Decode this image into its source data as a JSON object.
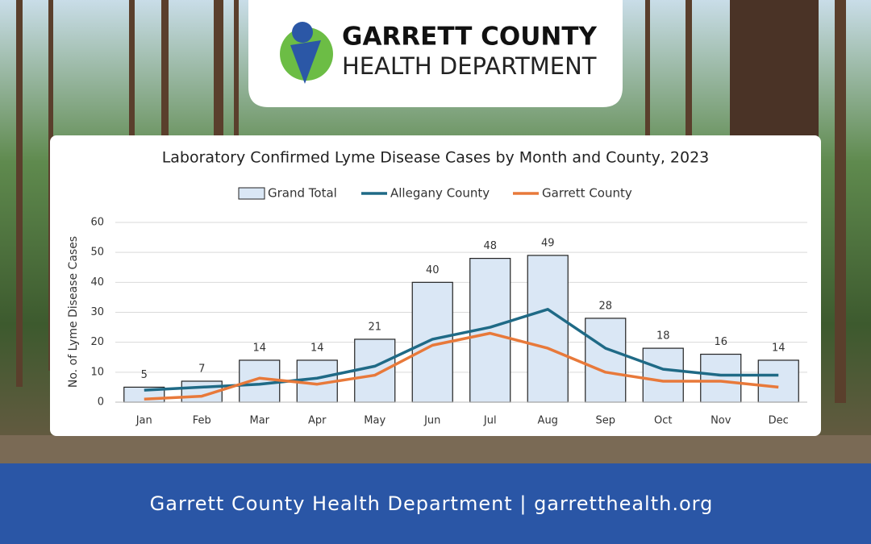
{
  "header": {
    "line1": "GARRETT COUNTY",
    "line2": "HEALTH DEPARTMENT"
  },
  "footer": {
    "text": "Garrett County Health Department | garretthealth.org"
  },
  "chart_data": {
    "type": "bar",
    "title": "Laboratory Confirmed Lyme Disease Cases by Month and County, 2023",
    "y_label": "No. of Lyme Disease Cases",
    "categories": [
      "Jan",
      "Feb",
      "Mar",
      "Apr",
      "May",
      "Jun",
      "Jul",
      "Aug",
      "Sep",
      "Oct",
      "Nov",
      "Dec"
    ],
    "series": [
      {
        "name": "Grand Total",
        "type": "bar",
        "color": "#dae7f5",
        "values": [
          5,
          7,
          14,
          14,
          21,
          40,
          48,
          49,
          28,
          18,
          16,
          14
        ]
      },
      {
        "name": "Allegany County",
        "type": "line",
        "color": "#1f6a86",
        "values": [
          4,
          5,
          6,
          8,
          12,
          21,
          25,
          31,
          18,
          11,
          9,
          9
        ]
      },
      {
        "name": "Garrett County",
        "type": "line",
        "color": "#e8793a",
        "values": [
          1,
          2,
          8,
          6,
          9,
          19,
          23,
          18,
          10,
          7,
          7,
          5
        ]
      }
    ],
    "ylim": [
      0,
      60
    ],
    "yticks": [
      0,
      10,
      20,
      30,
      40,
      50,
      60
    ],
    "grid": true,
    "legend": "top"
  }
}
